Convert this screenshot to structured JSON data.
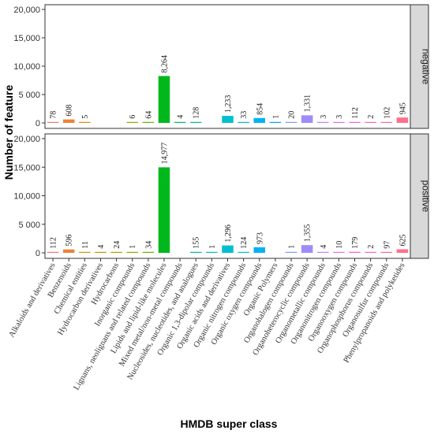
{
  "chart_data": {
    "type": "bar",
    "xlabel": "HMDB super class",
    "ylabel": "Number of feature",
    "ylim": [
      0,
      20000
    ],
    "yticks": [
      0,
      5000,
      10000,
      15000,
      20000
    ],
    "ytick_labels": [
      "0",
      "5 000",
      "10,000",
      "15,000",
      "20,000"
    ],
    "categories": [
      "Alkaloids and derivatives",
      "Benzenoids",
      "Chemical entities",
      "Hydrocarbon derivatives",
      "Hydrocarbons",
      "Inorganic compounds",
      "Lignans, neolignans and related compounds",
      "Lipids and lipid-like molecules",
      "Mixed metal/non-metal compounds",
      "Nucleosides, nucleotides, and analogues",
      "Organic 1,3-dipolar compounds",
      "Organic acids and derivatives",
      "Organic nitrogen compounds",
      "Organic oxygen compounds",
      "Organic Polymers",
      "Organohalogen compounds",
      "Organoheterocyclic compounds",
      "Organometallic compounds",
      "Organonitrogen compounds",
      "Organooxygen compounds",
      "Organophosphorus compounds",
      "Organosulfur compounds",
      "Phenylpropanoids and polyketides"
    ],
    "colors": [
      "#f8766d",
      "#ec8239",
      "#db8e00",
      "#c79800",
      "#aea200",
      "#8faa00",
      "#64b200",
      "#00b81b",
      "#00bd5c",
      "#00c08d",
      "#00c1b3",
      "#00bfd0",
      "#00bae3",
      "#00b2f3",
      "#00a6ff",
      "#7f96ff",
      "#9f8cfb",
      "#c77cff",
      "#e76bf3",
      "#f763e0",
      "#ff62bc",
      "#ff6c91",
      "#ff6f8a"
    ],
    "series": [
      {
        "name": "negative",
        "values": [
          78,
          608,
          5,
          null,
          null,
          6,
          64,
          8264,
          4,
          128,
          null,
          1233,
          33,
          854,
          1,
          20,
          1331,
          3,
          3,
          112,
          2,
          102,
          945
        ],
        "labels": [
          "78",
          "608",
          "5",
          "",
          "",
          "6",
          "64",
          "8,264",
          "4",
          "128",
          "",
          "1,233",
          "33",
          "854",
          "1",
          "20",
          "1,331",
          "3",
          "3",
          "112",
          "2",
          "102",
          "945"
        ]
      },
      {
        "name": "positive",
        "values": [
          112,
          596,
          11,
          4,
          24,
          1,
          34,
          14977,
          null,
          155,
          1,
          1296,
          124,
          973,
          null,
          1,
          1355,
          4,
          10,
          179,
          2,
          97,
          625
        ],
        "labels": [
          "112",
          "596",
          "11",
          "4",
          "24",
          "1",
          "34",
          "14,977",
          "",
          "155",
          "1",
          "1,296",
          "124",
          "973",
          "",
          "1",
          "1,355",
          "4",
          "10",
          "179",
          "2",
          "97",
          "625"
        ]
      }
    ],
    "grid": false,
    "legend": "none"
  }
}
